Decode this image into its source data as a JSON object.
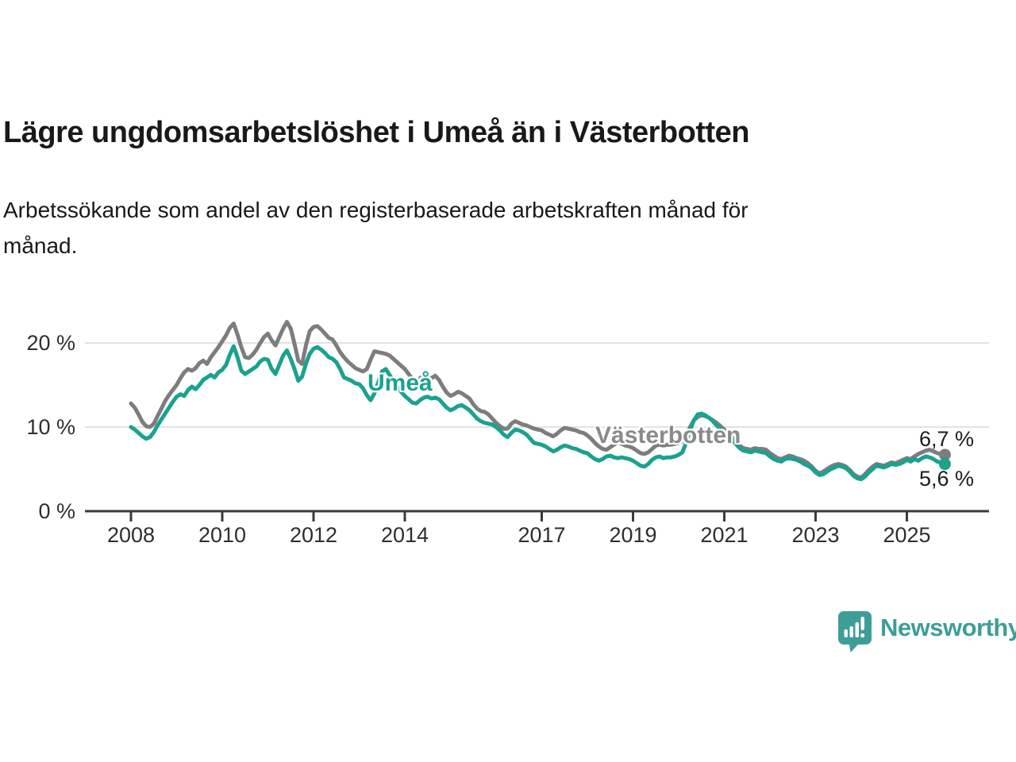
{
  "title": "Lägre ungdomsarbetslöshet i Umeå än i Västerbotten",
  "subtitle_lines": [
    "Arbetssökande som andel av den registerbaserade arbetskraften månad för",
    "månad."
  ],
  "chart_data": {
    "type": "line",
    "x_unit": "month",
    "x_start": "2008-01",
    "x_end": "2025-11",
    "x_axis_tick_years": [
      2008,
      2010,
      2012,
      2014,
      2017,
      2019,
      2021,
      2023,
      2025
    ],
    "x_axis_tick_labels": [
      "2008",
      "2010",
      "2012",
      "2014",
      "2017",
      "2019",
      "2021",
      "2023",
      "2025"
    ],
    "y_ticks": [
      {
        "value": 0,
        "label": "0 %"
      },
      {
        "value": 10,
        "label": "10 %"
      },
      {
        "value": 20,
        "label": "20 %"
      }
    ],
    "ylim": [
      0,
      23
    ],
    "grid": "horizontal-only",
    "legend_position": "inline-labels-on-lines",
    "colors": {
      "umea": "#1aa28f",
      "vasterbotten": "#7d7d7d",
      "grid": "#d8d8d8",
      "axis": "#3b3b3b",
      "tick_text": "#2e2e2e"
    },
    "series": [
      {
        "name": "Västerbotten",
        "color": "#7d7d7d",
        "values": [
          12.8,
          12.3,
          11.5,
          10.6,
          10.1,
          10.0,
          10.4,
          11.3,
          12.2,
          13.1,
          13.8,
          14.4,
          15.0,
          15.8,
          16.5,
          16.9,
          16.7,
          17.0,
          17.6,
          17.9,
          17.5,
          18.3,
          18.9,
          19.5,
          20.2,
          20.9,
          21.8,
          22.3,
          21.0,
          19.5,
          18.3,
          18.2,
          18.6,
          19.2,
          20.0,
          20.7,
          21.1,
          20.3,
          19.7,
          20.7,
          21.7,
          22.5,
          21.7,
          19.9,
          17.9,
          17.5,
          19.7,
          21.4,
          21.9,
          22.0,
          21.6,
          21.1,
          20.6,
          20.4,
          19.7,
          18.9,
          18.3,
          17.8,
          17.4,
          17.0,
          16.8,
          16.6,
          16.9,
          18.0,
          19.0,
          18.9,
          18.8,
          18.7,
          18.5,
          18.1,
          17.7,
          17.3,
          16.9,
          16.3,
          15.7,
          15.3,
          15.8,
          16.1,
          15.9,
          15.8,
          16.1,
          15.6,
          14.8,
          14.1,
          13.7,
          13.9,
          14.2,
          14.0,
          13.7,
          13.4,
          12.7,
          12.2,
          11.9,
          11.8,
          11.5,
          11.0,
          10.5,
          10.1,
          9.8,
          9.8,
          10.4,
          10.7,
          10.5,
          10.3,
          10.2,
          10.0,
          9.8,
          9.7,
          9.6,
          9.3,
          9.1,
          8.9,
          9.2,
          9.6,
          9.9,
          9.8,
          9.7,
          9.6,
          9.4,
          9.3,
          9.0,
          8.6,
          8.1,
          7.7,
          7.4,
          7.3,
          7.6,
          7.9,
          8.2,
          8.0,
          7.8,
          7.7,
          7.5,
          7.2,
          6.9,
          6.8,
          7.0,
          7.4,
          7.8,
          7.9,
          7.8,
          7.9,
          7.9,
          8.0,
          8.1,
          8.3,
          9.0,
          10.0,
          10.8,
          11.2,
          11.4,
          11.3,
          11.1,
          10.8,
          10.5,
          10.1,
          9.7,
          9.3,
          8.8,
          8.3,
          7.8,
          7.5,
          7.4,
          7.3,
          7.5,
          7.4,
          7.4,
          7.3,
          6.9,
          6.6,
          6.3,
          6.2,
          6.4,
          6.6,
          6.5,
          6.3,
          6.2,
          6.0,
          5.7,
          5.3,
          4.8,
          4.5,
          4.7,
          5.0,
          5.3,
          5.5,
          5.6,
          5.5,
          5.3,
          4.9,
          4.4,
          4.1,
          4.0,
          4.4,
          4.9,
          5.3,
          5.6,
          5.5,
          5.4,
          5.6,
          5.8,
          5.7,
          5.9,
          6.1,
          6.3,
          6.2,
          6.5,
          6.8,
          7.0,
          7.2,
          7.3,
          7.1,
          6.9,
          6.8,
          6.7
        ]
      },
      {
        "name": "Umeå",
        "color": "#1aa28f",
        "values": [
          10.0,
          9.7,
          9.3,
          8.9,
          8.6,
          8.8,
          9.4,
          10.2,
          10.9,
          11.6,
          12.3,
          13.0,
          13.6,
          13.9,
          13.7,
          14.4,
          14.8,
          14.5,
          15.0,
          15.6,
          15.9,
          16.2,
          15.9,
          16.5,
          16.8,
          17.4,
          18.6,
          19.6,
          18.3,
          16.7,
          16.3,
          16.6,
          16.9,
          17.2,
          17.8,
          18.1,
          18.0,
          16.9,
          16.3,
          17.4,
          18.5,
          19.1,
          18.1,
          16.9,
          15.5,
          16.0,
          17.5,
          18.7,
          19.3,
          19.5,
          19.2,
          18.8,
          18.3,
          18.1,
          17.7,
          16.9,
          15.9,
          15.7,
          15.5,
          15.2,
          15.1,
          14.6,
          13.8,
          13.2,
          14.0,
          15.3,
          16.6,
          16.9,
          16.2,
          15.5,
          14.8,
          14.2,
          13.7,
          13.3,
          12.9,
          12.8,
          13.2,
          13.5,
          13.6,
          13.4,
          13.5,
          13.3,
          12.8,
          12.3,
          12.0,
          12.2,
          12.5,
          12.6,
          12.3,
          12.0,
          11.5,
          11.0,
          10.7,
          10.5,
          10.4,
          10.3,
          10.0,
          9.6,
          9.1,
          8.8,
          9.3,
          9.7,
          9.6,
          9.4,
          9.1,
          8.6,
          8.1,
          8.0,
          7.9,
          7.7,
          7.4,
          7.1,
          7.3,
          7.6,
          7.8,
          7.7,
          7.5,
          7.4,
          7.2,
          7.0,
          6.9,
          6.5,
          6.2,
          6.0,
          6.2,
          6.5,
          6.6,
          6.4,
          6.3,
          6.4,
          6.3,
          6.2,
          6.0,
          5.7,
          5.4,
          5.3,
          5.6,
          6.1,
          6.4,
          6.5,
          6.3,
          6.4,
          6.4,
          6.5,
          6.7,
          7.0,
          8.2,
          9.6,
          10.8,
          11.5,
          11.6,
          11.4,
          11.1,
          10.7,
          10.2,
          9.8,
          9.4,
          9.0,
          8.5,
          8.0,
          7.5,
          7.2,
          7.1,
          7.0,
          7.2,
          7.1,
          7.0,
          6.9,
          6.5,
          6.2,
          6.0,
          5.9,
          6.2,
          6.3,
          6.2,
          6.1,
          5.9,
          5.6,
          5.4,
          5.1,
          4.6,
          4.3,
          4.4,
          4.7,
          5.0,
          5.2,
          5.4,
          5.3,
          5.1,
          4.7,
          4.2,
          3.9,
          3.8,
          4.1,
          4.6,
          5.0,
          5.4,
          5.3,
          5.2,
          5.4,
          5.6,
          5.5,
          5.6,
          5.8,
          6.1,
          5.9,
          6.2,
          6.0,
          6.3,
          6.5,
          6.4,
          6.2,
          5.9,
          5.8,
          5.6
        ]
      }
    ],
    "annotations": {
      "umea_label": "Umeå",
      "vasterbotten_label": "Västerbotten",
      "end_value_vasterbotten": "6,7 %",
      "end_value_umea": "5,6 %"
    }
  },
  "branding": {
    "logo_text": "Newsworthy",
    "logo_color": "#3d9e97"
  }
}
